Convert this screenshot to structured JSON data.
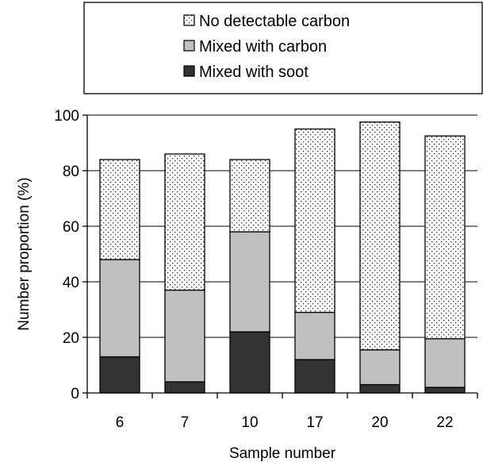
{
  "chart_data": {
    "type": "bar",
    "stacked": true,
    "categories": [
      "6",
      "7",
      "10",
      "17",
      "20",
      "22"
    ],
    "series": [
      {
        "name": "Mixed with soot",
        "values": [
          13,
          4,
          22,
          12,
          3,
          2
        ],
        "color": "#333333",
        "pattern": "solid"
      },
      {
        "name": "Mixed with carbon",
        "values": [
          35,
          33,
          36,
          17,
          12.5,
          17.5
        ],
        "color": "#c0c0c0",
        "pattern": "solid"
      },
      {
        "name": "No detectable carbon",
        "values": [
          36,
          49,
          26,
          66,
          82,
          73
        ],
        "color": "#ffffff",
        "pattern": "dotted"
      }
    ],
    "legend_order": [
      "No detectable carbon",
      "Mixed with carbon",
      "Mixed with soot"
    ],
    "title": "",
    "xlabel": "Sample number",
    "ylabel": "Number proportion (%)",
    "ylim": [
      0,
      100
    ],
    "yticks": [
      "0",
      "20",
      "40",
      "60",
      "80",
      "100"
    ],
    "grid": true,
    "legend_position": "top"
  }
}
